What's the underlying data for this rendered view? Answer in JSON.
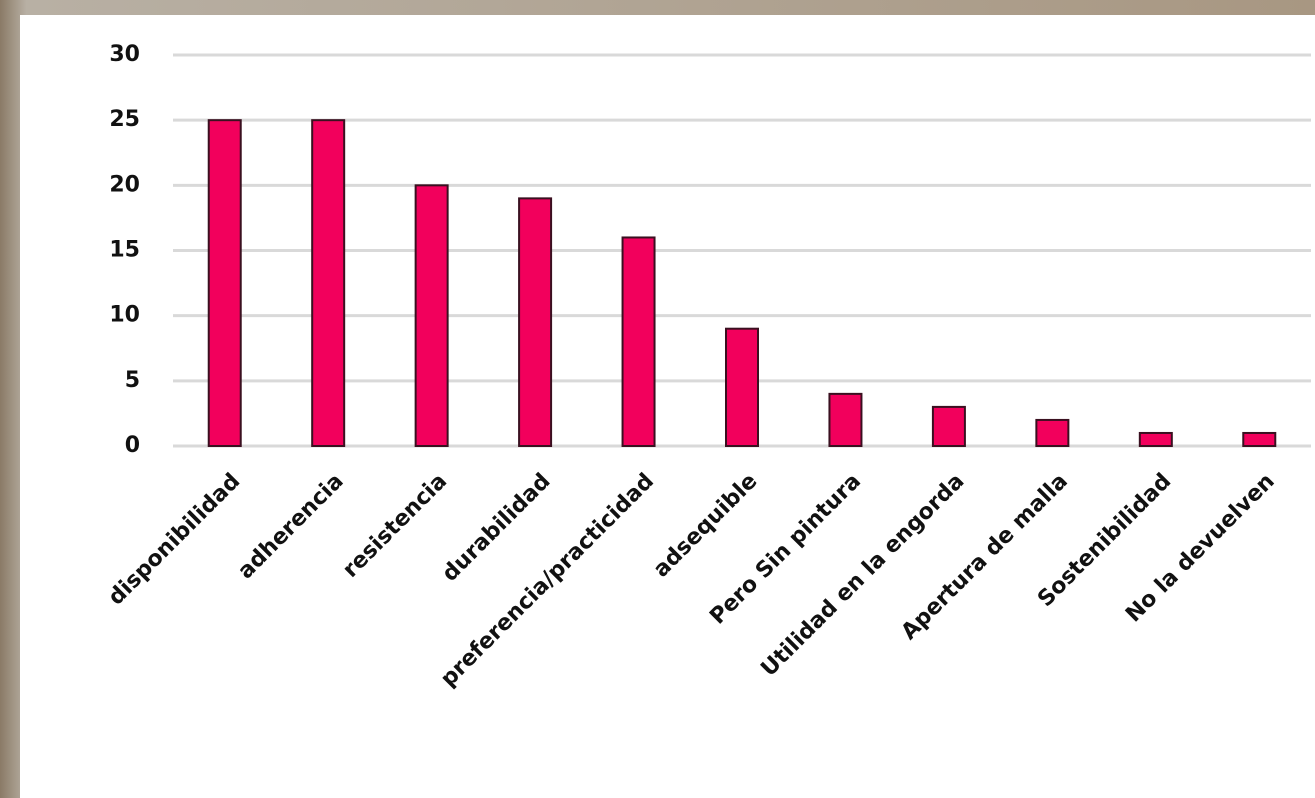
{
  "chart_data": {
    "type": "bar",
    "categories": [
      "disponibilidad",
      "adherencia",
      "resistencia",
      "durabilidad",
      "preferencia/practicidad",
      "adsequible",
      "Pero Sin pintura",
      "Utilidad en la engorda",
      "Apertura de malla",
      "Sostenibilidad",
      "No la devuelven"
    ],
    "values": [
      25,
      25,
      20,
      19,
      16,
      9,
      4,
      3,
      2,
      1,
      1
    ],
    "color": "#f2005c",
    "ylim": [
      0,
      30
    ],
    "yticks": [
      0,
      5,
      10,
      15,
      20,
      25,
      30
    ],
    "grid": true
  }
}
